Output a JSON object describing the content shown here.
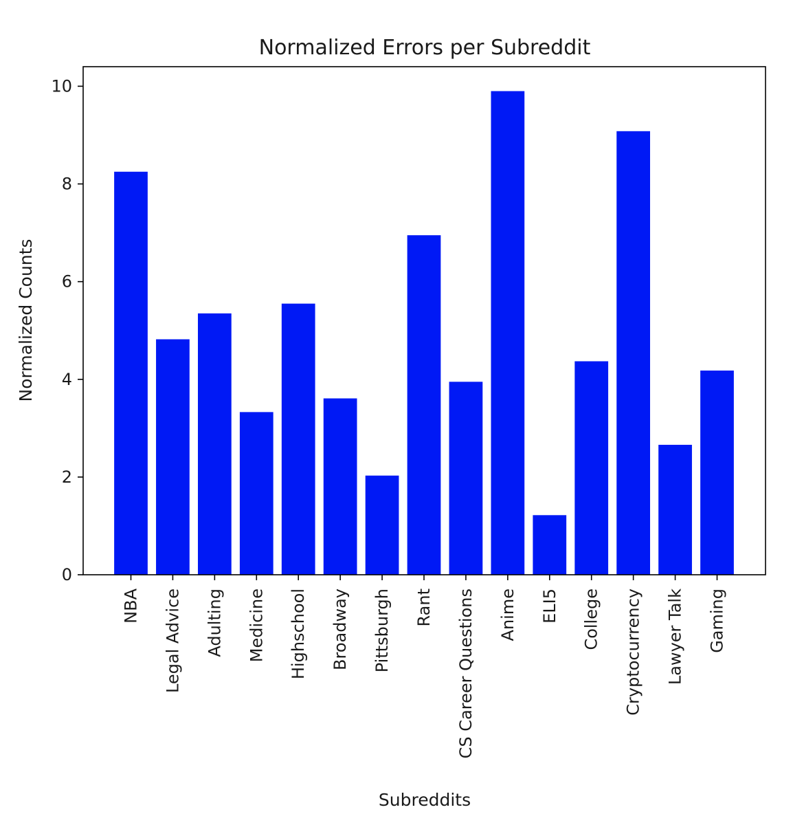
{
  "chart_data": {
    "type": "bar",
    "title": "Normalized Errors per Subreddit",
    "xlabel": "Subreddits",
    "ylabel": "Normalized Counts",
    "categories": [
      "NBA",
      "Legal Advice",
      "Adulting",
      "Medicine",
      "Highschool",
      "Broadway",
      "Pittsburgh",
      "Rant",
      "CS Career Questions",
      "Anime",
      "ELI5",
      "College",
      "Cryptocurrency",
      "Lawyer Talk",
      "Gaming"
    ],
    "values": [
      8.25,
      4.82,
      5.35,
      3.33,
      5.55,
      3.61,
      2.03,
      6.95,
      3.95,
      9.9,
      1.22,
      4.37,
      9.08,
      2.66,
      4.18
    ],
    "ylim": [
      0,
      10.4
    ],
    "yticks": [
      0,
      2,
      4,
      6,
      8,
      10
    ],
    "ytick_labels": [
      "0",
      "2",
      "4",
      "6",
      "8",
      "10"
    ],
    "bar_color": "#0019f5",
    "grid": false,
    "legend": "none"
  }
}
